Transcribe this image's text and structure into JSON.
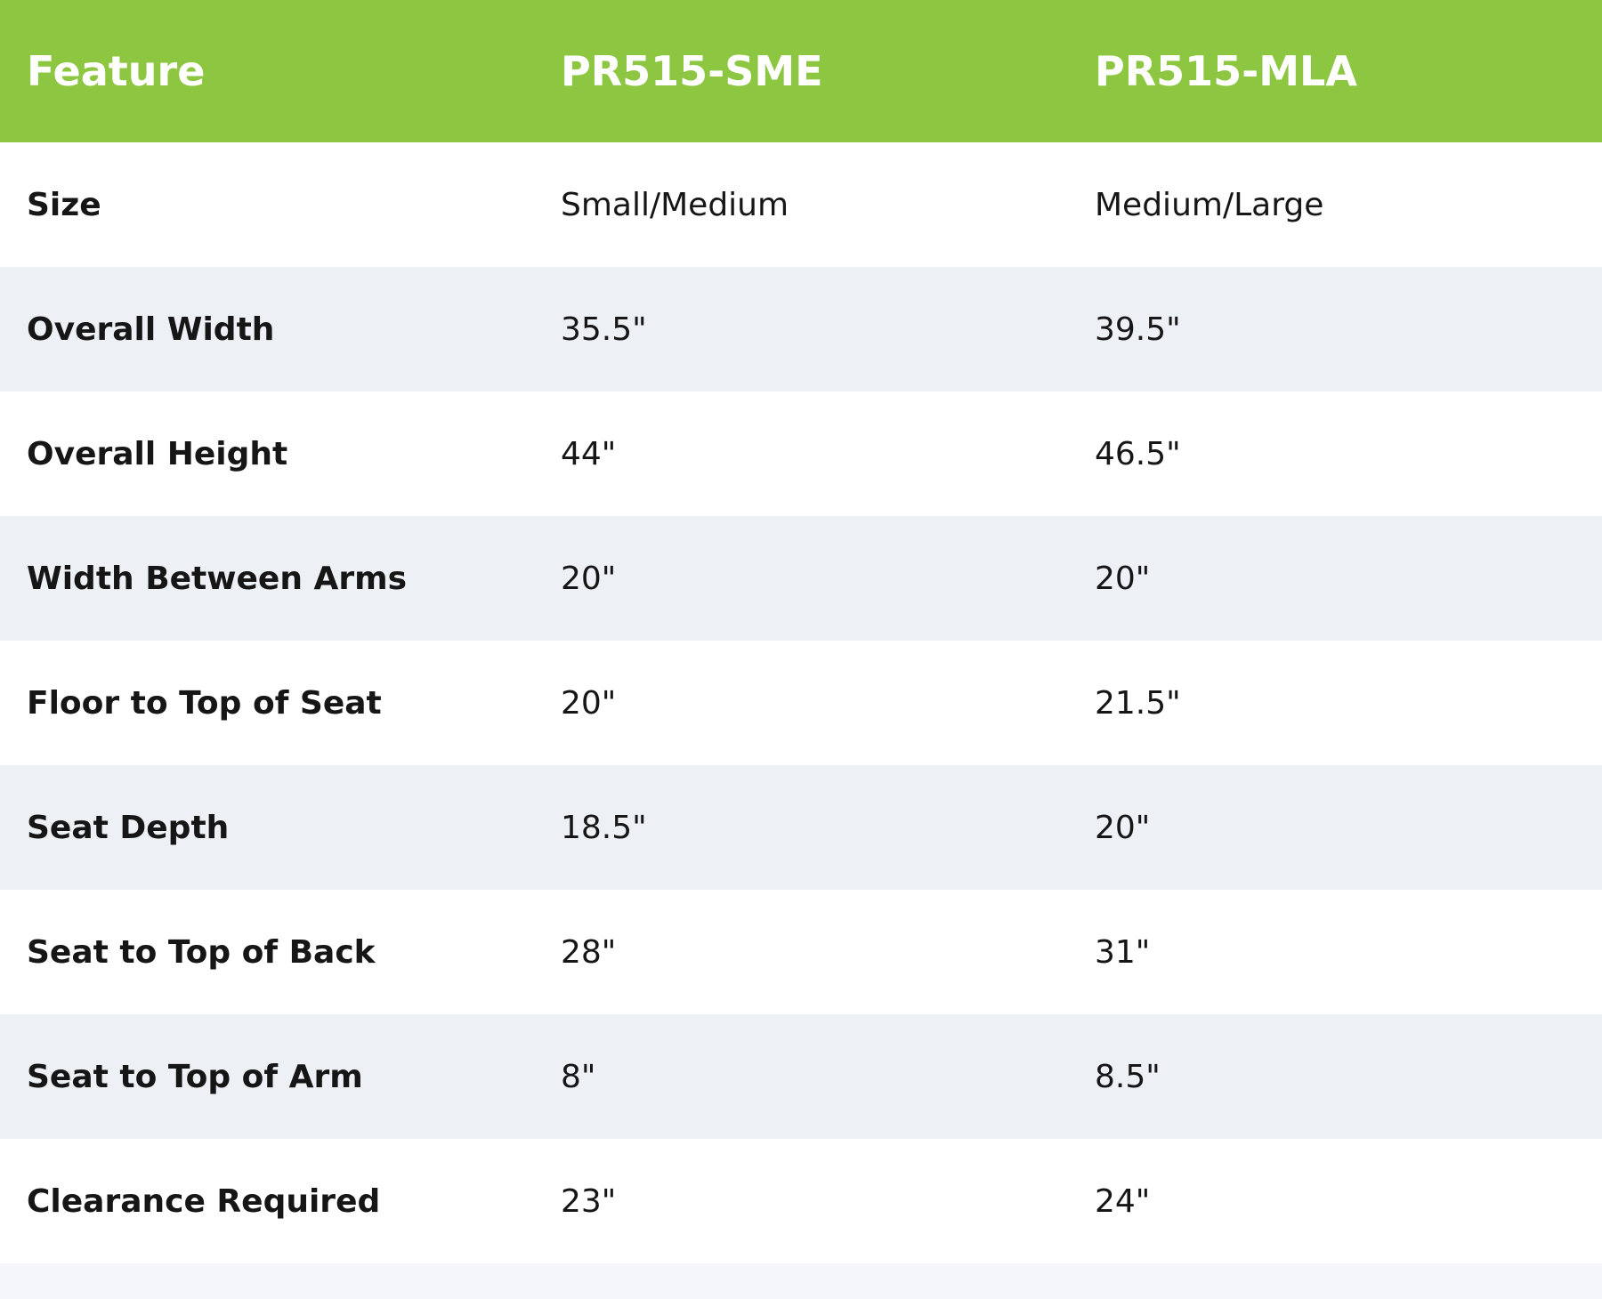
{
  "table": {
    "header": [
      "Feature",
      "PR515-SME",
      "PR515-MLA"
    ],
    "rows": [
      [
        "Size",
        "Small/Medium",
        "Medium/Large"
      ],
      [
        "Overall Width",
        "35.5\"",
        "39.5\""
      ],
      [
        "Overall Height",
        "44\"",
        "46.5\""
      ],
      [
        "Width Between Arms",
        "20\"",
        "20\""
      ],
      [
        "Floor to Top of Seat",
        "20\"",
        "21.5\""
      ],
      [
        "Seat Depth",
        "18.5\"",
        "20\""
      ],
      [
        "Seat to Top of Back",
        "28\"",
        "31\""
      ],
      [
        "Seat to Top of Arm",
        "8\"",
        "8.5\""
      ],
      [
        "Clearance Required",
        "23\"",
        "24\""
      ]
    ]
  }
}
